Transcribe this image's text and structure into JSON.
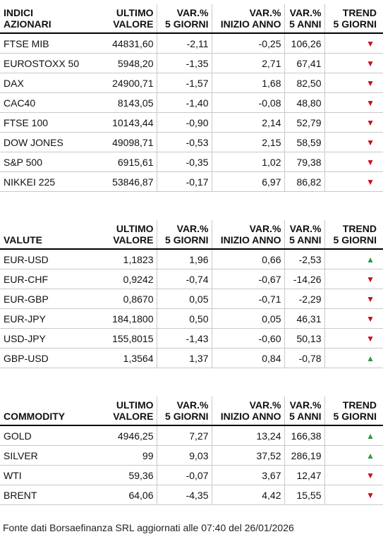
{
  "headers": {
    "col1": [
      "ULTIMO",
      "VALORE"
    ],
    "col2": [
      "VAR.%",
      "5 GIORNI"
    ],
    "col3": [
      "VAR.%",
      "INIZIO ANNO"
    ],
    "col4": [
      "VAR.%",
      "5 ANNI"
    ],
    "col5": [
      "TREND",
      "5 GIORNI"
    ]
  },
  "indices": {
    "title": [
      "INDICI",
      "AZIONARI"
    ],
    "rows": [
      {
        "name": "FTSE MIB",
        "value": "44831,60",
        "var5d": "-2,11",
        "ytd": "-0,25",
        "var5y": "106,26",
        "trend": "down"
      },
      {
        "name": "EUROSTOXX 50",
        "value": "5948,20",
        "var5d": "-1,35",
        "ytd": "2,71",
        "var5y": "67,41",
        "trend": "down"
      },
      {
        "name": "DAX",
        "value": "24900,71",
        "var5d": "-1,57",
        "ytd": "1,68",
        "var5y": "82,50",
        "trend": "down"
      },
      {
        "name": "CAC40",
        "value": "8143,05",
        "var5d": "-1,40",
        "ytd": "-0,08",
        "var5y": "48,80",
        "trend": "down"
      },
      {
        "name": "FTSE 100",
        "value": "10143,44",
        "var5d": "-0,90",
        "ytd": "2,14",
        "var5y": "52,79",
        "trend": "down"
      },
      {
        "name": "DOW JONES",
        "value": "49098,71",
        "var5d": "-0,53",
        "ytd": "2,15",
        "var5y": "58,59",
        "trend": "down"
      },
      {
        "name": "S&P 500",
        "value": "6915,61",
        "var5d": "-0,35",
        "ytd": "1,02",
        "var5y": "79,38",
        "trend": "down"
      },
      {
        "name": "NIKKEI 225",
        "value": "53846,87",
        "var5d": "-0,17",
        "ytd": "6,97",
        "var5y": "86,82",
        "trend": "down"
      }
    ]
  },
  "currencies": {
    "title": [
      "",
      "VALUTE"
    ],
    "rows": [
      {
        "name": "EUR-USD",
        "value": "1,1823",
        "var5d": "1,96",
        "ytd": "0,66",
        "var5y": "-2,53",
        "trend": "up"
      },
      {
        "name": "EUR-CHF",
        "value": "0,9242",
        "var5d": "-0,74",
        "ytd": "-0,67",
        "var5y": "-14,26",
        "trend": "down"
      },
      {
        "name": "EUR-GBP",
        "value": "0,8670",
        "var5d": "0,05",
        "ytd": "-0,71",
        "var5y": "-2,29",
        "trend": "down"
      },
      {
        "name": "EUR-JPY",
        "value": "184,1800",
        "var5d": "0,50",
        "ytd": "0,05",
        "var5y": "46,31",
        "trend": "down"
      },
      {
        "name": "USD-JPY",
        "value": "155,8015",
        "var5d": "-1,43",
        "ytd": "-0,60",
        "var5y": "50,13",
        "trend": "down"
      },
      {
        "name": "GBP-USD",
        "value": "1,3564",
        "var5d": "1,37",
        "ytd": "0,84",
        "var5y": "-0,78",
        "trend": "up"
      }
    ]
  },
  "commodities": {
    "title": [
      "",
      "COMMODITY"
    ],
    "rows": [
      {
        "name": "GOLD",
        "value": "4946,25",
        "var5d": "7,27",
        "ytd": "13,24",
        "var5y": "166,38",
        "trend": "up"
      },
      {
        "name": "SILVER",
        "value": "99",
        "var5d": "9,03",
        "ytd": "37,52",
        "var5y": "286,19",
        "trend": "up"
      },
      {
        "name": "WTI",
        "value": "59,36",
        "var5d": "-0,07",
        "ytd": "3,67",
        "var5y": "12,47",
        "trend": "down"
      },
      {
        "name": "BRENT",
        "value": "64,06",
        "var5d": "-4,35",
        "ytd": "4,42",
        "var5y": "15,55",
        "trend": "down"
      }
    ]
  },
  "trend_symbols": {
    "up": "▲",
    "down": "▼"
  },
  "colors": {
    "up": "#2c9c3a",
    "down": "#cc0a1a",
    "rule": "#000000",
    "row_border": "#c9c9c9"
  },
  "footer": "Fonte dati Borsaefinanza SRL aggiornati alle 07:40 del 26/01/2026"
}
